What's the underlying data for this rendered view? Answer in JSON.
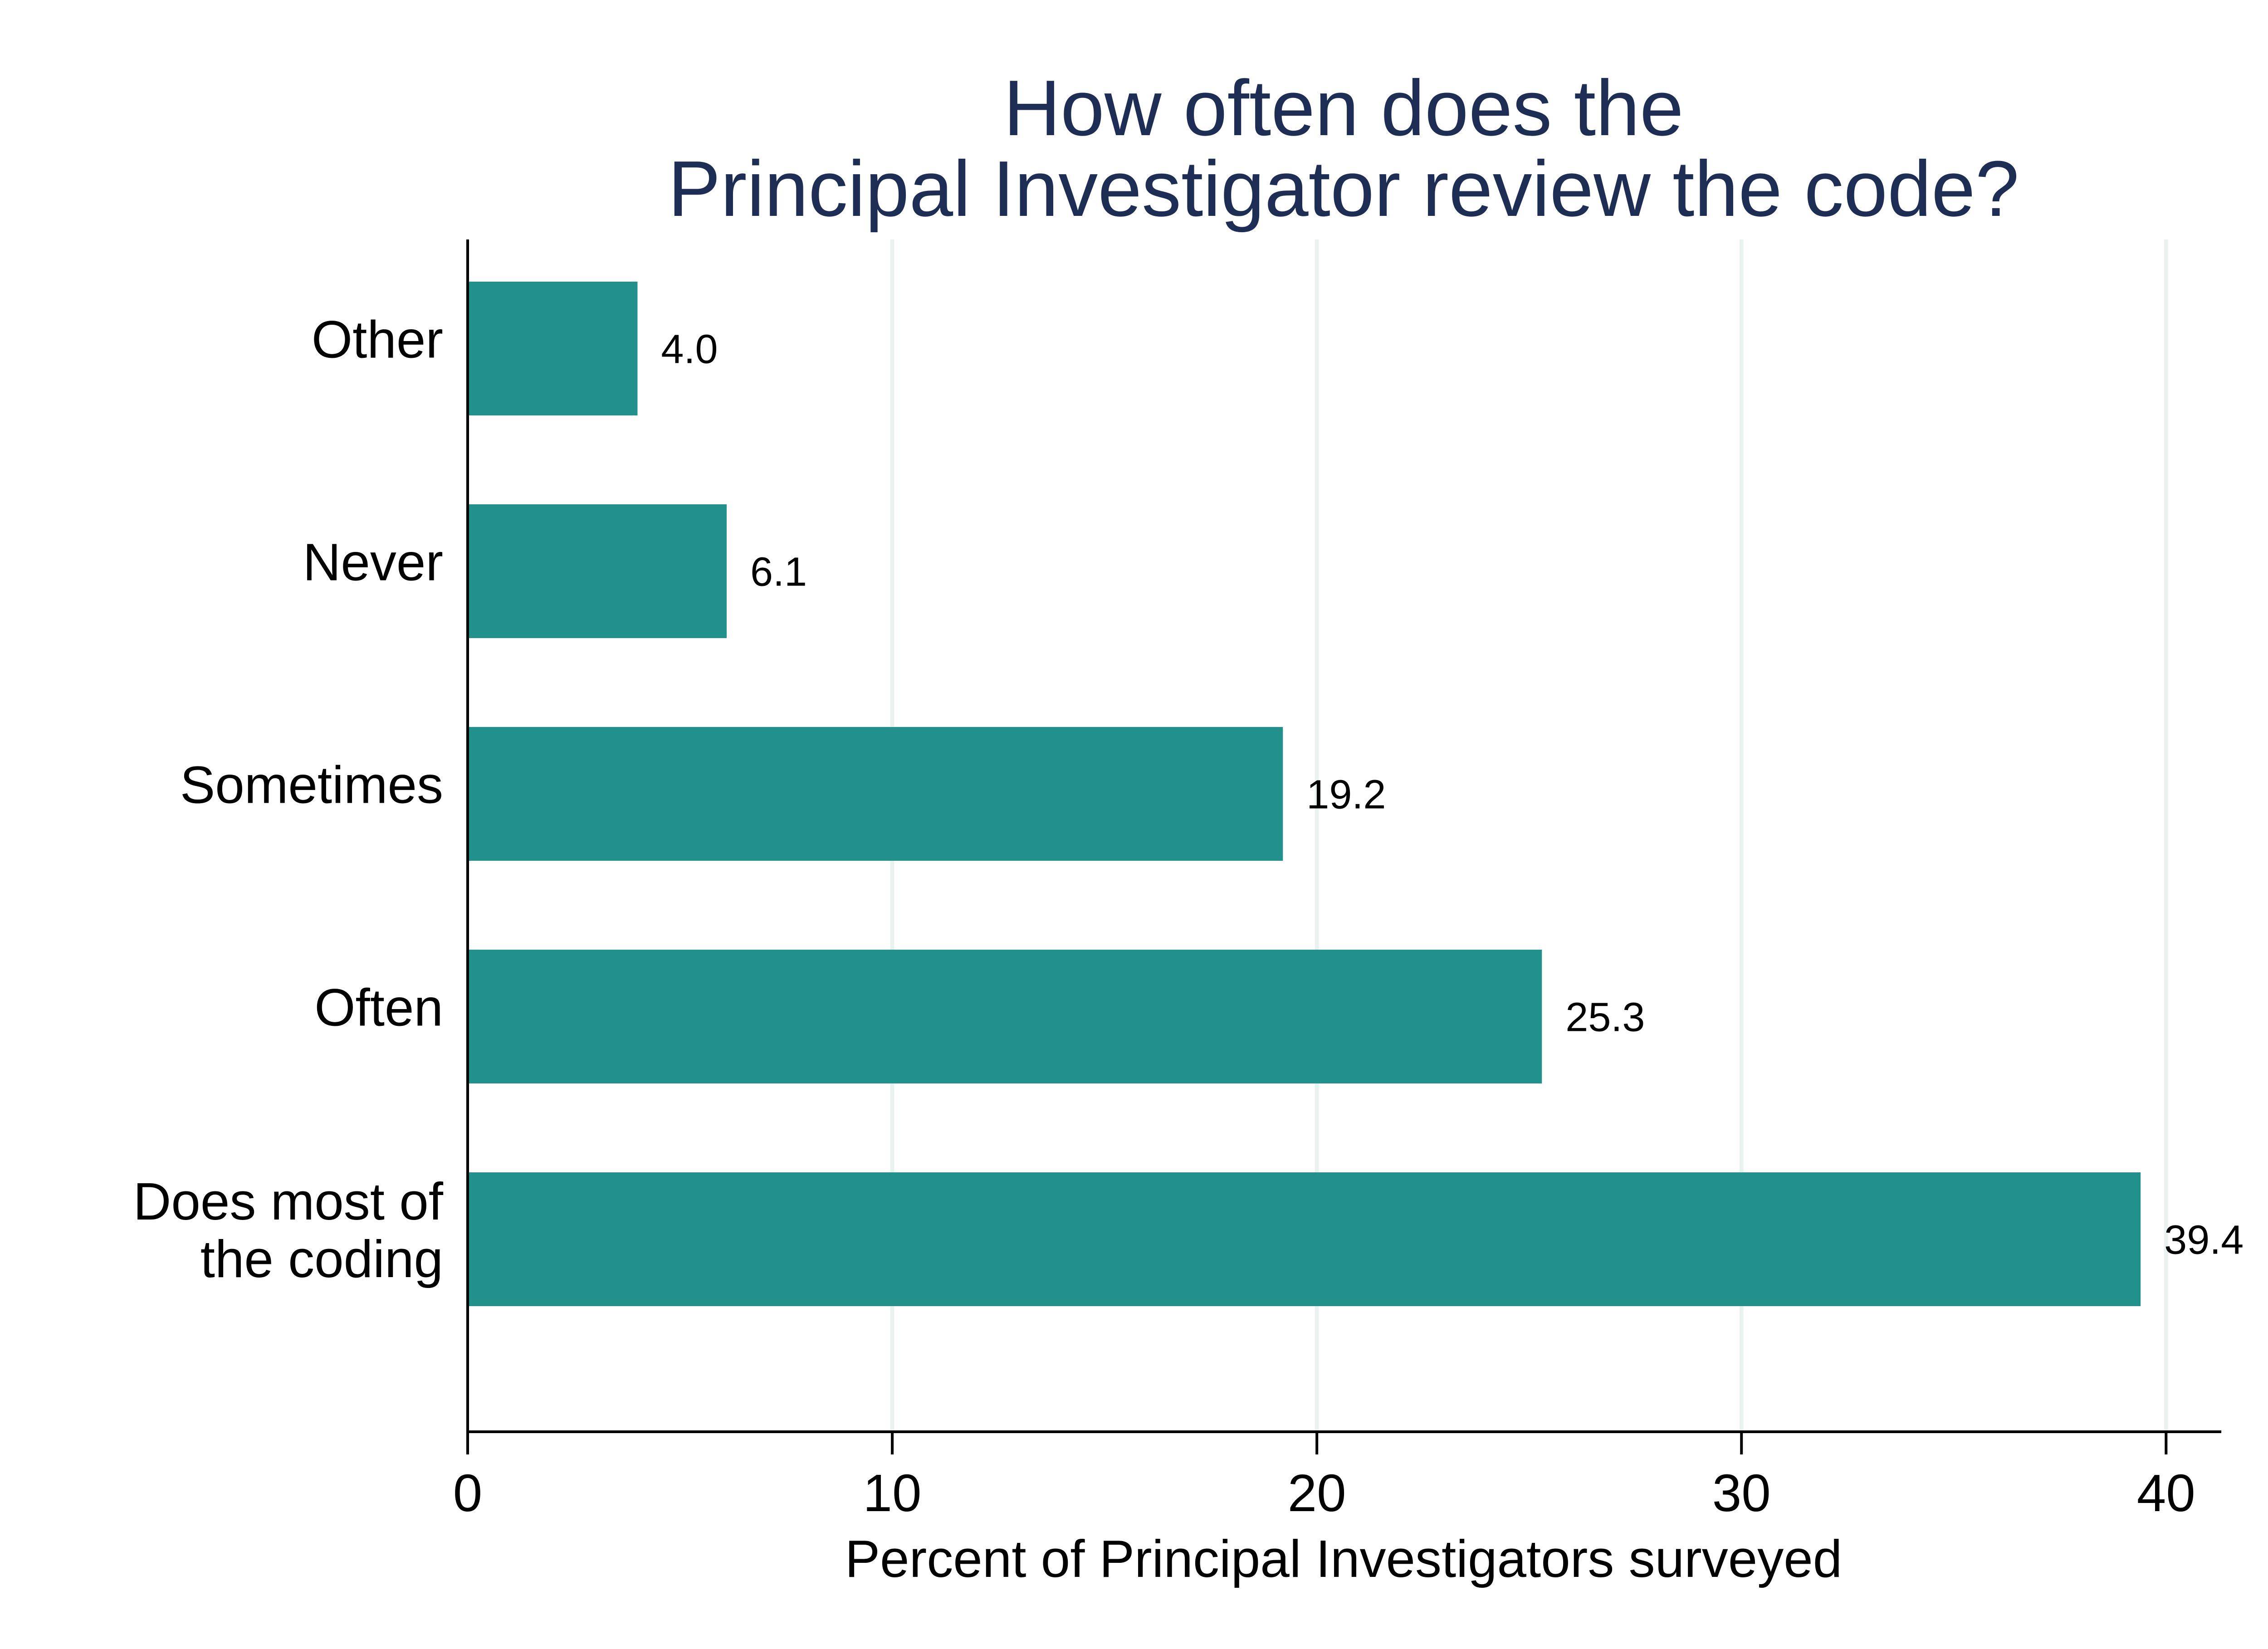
{
  "chart_data": {
    "type": "bar",
    "orientation": "horizontal",
    "title_lines": [
      "How often does the",
      "Principal Investigator review the code?"
    ],
    "xlabel": "Percent of Principal Investigators surveyed",
    "ylabel": "",
    "categories": [
      [
        "Other"
      ],
      [
        "Never"
      ],
      [
        "Sometimes"
      ],
      [
        "Often"
      ],
      [
        "Does most of",
        "the coding"
      ]
    ],
    "values": [
      4.0,
      6.1,
      19.2,
      25.3,
      39.4
    ],
    "value_labels": [
      "4.0",
      "6.1",
      "19.2",
      "25.3",
      "39.4"
    ],
    "xlim": [
      0,
      41.3
    ],
    "xticks": [
      0,
      10,
      20,
      30,
      40
    ],
    "xtick_labels": [
      "0",
      "10",
      "20",
      "30",
      "40"
    ],
    "grid": "vertical",
    "legend": "none"
  },
  "colors": {
    "bar": "#22918b",
    "title": "#1e2d53",
    "grid": "#e9f2f1",
    "axis": "#000000",
    "text": "#000000"
  }
}
